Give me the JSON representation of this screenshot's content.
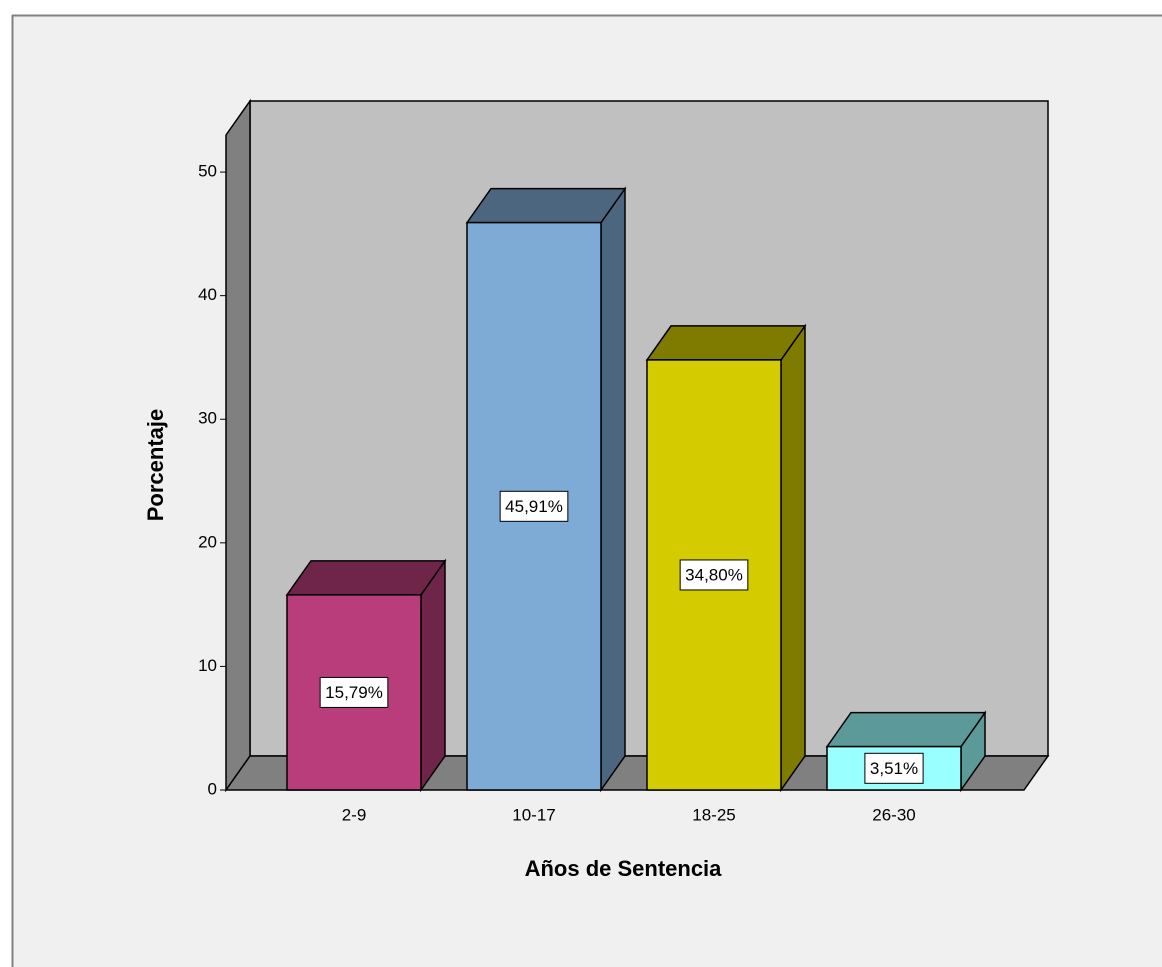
{
  "chart_data": {
    "type": "bar3d",
    "categories": [
      "2-9",
      "10-17",
      "18-25",
      "26-30"
    ],
    "values": [
      15.79,
      45.91,
      34.8,
      3.51
    ],
    "value_labels": [
      "15,79%",
      "45,91%",
      "34,80%",
      "3,51%"
    ],
    "colors": [
      "#b93d7a",
      "#7eaad6",
      "#d4cc00",
      "#99ffff"
    ],
    "ylabel": "Porcentaje",
    "xlabel": "Años de Sentencia",
    "ylim": [
      0,
      53
    ],
    "yticks": [
      0,
      10,
      20,
      30,
      40,
      50
    ]
  }
}
